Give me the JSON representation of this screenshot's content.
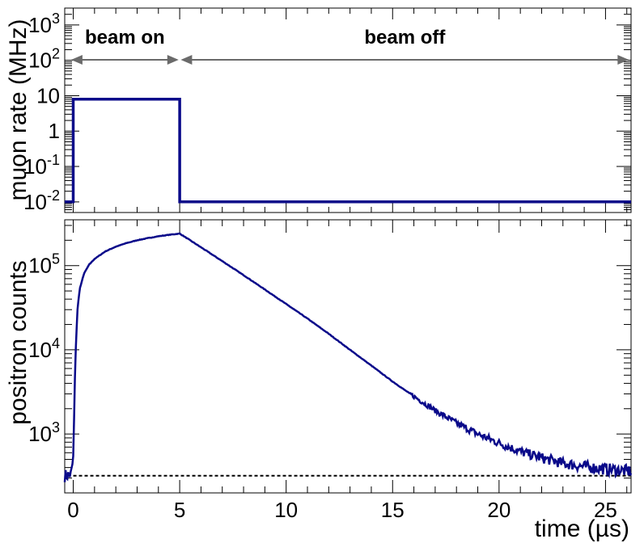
{
  "colors": {
    "series": "#0a0a8a",
    "arrow": "#6a6a6a",
    "baseline": "#000000"
  },
  "chart_data": [
    {
      "type": "line",
      "ylabel": "muon rate (MHz)",
      "yscale": "log",
      "ylim": [
        0.005,
        3000
      ],
      "xlim": [
        -0.4,
        26.2
      ],
      "yticks": [
        {
          "base": "10",
          "exp": "-2"
        },
        {
          "base": "10",
          "exp": "-1"
        },
        {
          "base": "1",
          "exp": ""
        },
        {
          "base": "10",
          "exp": ""
        },
        {
          "base": "10",
          "exp": "2"
        },
        {
          "base": "10",
          "exp": "3"
        }
      ],
      "series": [
        {
          "x": [
            -0.4,
            0,
            0,
            5,
            5,
            26.2
          ],
          "y": [
            0.01,
            0.01,
            8,
            8,
            0.01,
            0.01
          ]
        }
      ],
      "annotations": [
        {
          "text": "beam on",
          "from": -0.1,
          "to": 4.95
        },
        {
          "text": "beam off",
          "from": 5.05,
          "to": 26.1
        }
      ]
    },
    {
      "type": "line",
      "ylabel": "positron counts",
      "xlabel_text": "time (",
      "xlabel_mu": "µ",
      "xlabel_unit": "s)",
      "yscale": "log",
      "ylim": [
        200,
        350000
      ],
      "xlim": [
        -0.4,
        26.2
      ],
      "xticks": [
        "0",
        "5",
        "10",
        "15",
        "20",
        "25"
      ],
      "yticks": [
        {
          "base": "10",
          "exp": "3"
        },
        {
          "base": "10",
          "exp": "4"
        },
        {
          "base": "10",
          "exp": "5"
        }
      ],
      "baseline": 320,
      "series": [
        {
          "x": [
            -0.4,
            -0.1,
            0,
            0.1,
            0.2,
            0.3,
            0.5,
            0.75,
            1,
            1.5,
            2,
            2.5,
            3,
            3.5,
            4,
            4.5,
            5,
            6,
            7,
            8,
            9,
            10,
            11,
            12,
            13,
            14,
            15,
            16,
            17,
            18,
            19,
            20,
            21,
            22,
            23,
            24,
            25,
            26.2
          ],
          "y": [
            320,
            330,
            520,
            8000,
            30000,
            52000,
            80000,
            103000,
            120000,
            147000,
            168000,
            185000,
            200000,
            212000,
            223000,
            232000,
            240000,
            165000,
            113000,
            77000,
            52000,
            35000,
            23500,
            15500,
            10000,
            6500,
            4200,
            2800,
            1900,
            1350,
            1000,
            780,
            620,
            520,
            450,
            410,
            385,
            360
          ]
        }
      ]
    }
  ]
}
